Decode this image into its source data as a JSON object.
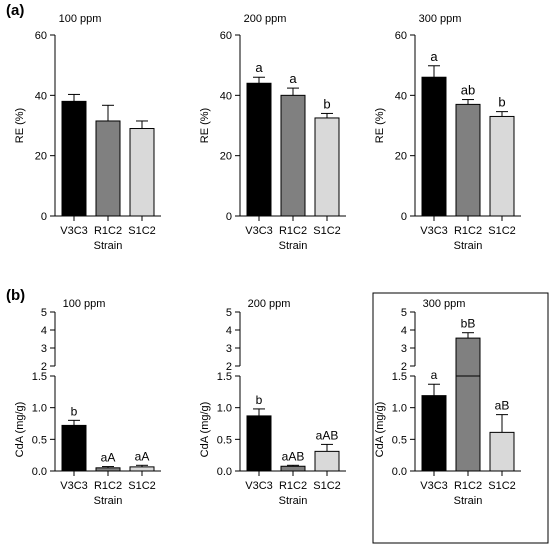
{
  "panels": [
    {
      "label": "(a)"
    },
    {
      "label": "(b)"
    }
  ],
  "colors": {
    "V3C3": "#000000",
    "R1C2": "#808080",
    "S1C2": "#d9d9d9",
    "axis": "#000000"
  },
  "chart_data": [
    {
      "type": "bar",
      "panel": "(a)",
      "title": "100 ppm",
      "categories": [
        "V3C3",
        "R1C2",
        "S1C2"
      ],
      "values": [
        38,
        31.5,
        29
      ],
      "errors": [
        2.3,
        5.2,
        2.5
      ],
      "letters": [
        "",
        "",
        ""
      ],
      "xlabel": "Strain",
      "ylabel": "RE (%)",
      "ylim": [
        0,
        60
      ],
      "yticks": [
        "0",
        "20",
        "40",
        "60"
      ]
    },
    {
      "type": "bar",
      "panel": "(a)",
      "title": "200 ppm",
      "categories": [
        "V3C3",
        "R1C2",
        "S1C2"
      ],
      "values": [
        44,
        40,
        32.5
      ],
      "errors": [
        2.0,
        2.4,
        1.5
      ],
      "letters": [
        "a",
        "a",
        "b"
      ],
      "xlabel": "Strain",
      "ylabel": "RE (%)",
      "ylim": [
        0,
        60
      ],
      "yticks": [
        "0",
        "20",
        "40",
        "60"
      ]
    },
    {
      "type": "bar",
      "panel": "(a)",
      "title": "300 ppm",
      "categories": [
        "V3C3",
        "R1C2",
        "S1C2"
      ],
      "values": [
        46,
        37,
        33
      ],
      "errors": [
        3.8,
        1.6,
        1.6
      ],
      "letters": [
        "a",
        "ab",
        "b"
      ],
      "xlabel": "Strain",
      "ylabel": "RE (%)",
      "ylim": [
        0,
        60
      ],
      "yticks": [
        "0",
        "20",
        "40",
        "60"
      ]
    },
    {
      "type": "bar",
      "panel": "(b)",
      "title": "100 ppm",
      "categories": [
        "V3C3",
        "R1C2",
        "S1C2"
      ],
      "values": [
        0.72,
        0.05,
        0.065
      ],
      "errors": [
        0.08,
        0.02,
        0.025
      ],
      "letters": [
        "b",
        "aA",
        "aA"
      ],
      "xlabel": "Strain",
      "ylabel": "CdA (mg/g)",
      "ylim": [
        0,
        5
      ],
      "axis_break": [
        1.5,
        2
      ],
      "yticks_lower": [
        "0.0",
        "0.5",
        "1.0",
        "1.5"
      ],
      "yticks_upper": [
        "2",
        "3",
        "4",
        "5"
      ]
    },
    {
      "type": "bar",
      "panel": "(b)",
      "title": "200 ppm",
      "categories": [
        "V3C3",
        "R1C2",
        "S1C2"
      ],
      "values": [
        0.87,
        0.075,
        0.31
      ],
      "errors": [
        0.11,
        0.015,
        0.11
      ],
      "letters": [
        "b",
        "aAB",
        "aAB"
      ],
      "xlabel": "Strain",
      "ylabel": "CdA (mg/g)",
      "ylim": [
        0,
        5
      ],
      "axis_break": [
        1.5,
        2
      ],
      "yticks_lower": [
        "0.0",
        "0.5",
        "1.0",
        "1.5"
      ],
      "yticks_upper": [
        "2",
        "3",
        "4",
        "5"
      ]
    },
    {
      "type": "bar",
      "panel": "(b)",
      "title": "300 ppm",
      "categories": [
        "V3C3",
        "R1C2",
        "S1C2"
      ],
      "values": [
        1.19,
        3.55,
        0.61
      ],
      "errors": [
        0.18,
        0.3,
        0.28
      ],
      "letters": [
        "a",
        "bB",
        "aB"
      ],
      "xlabel": "Strain",
      "ylabel": "CdA (mg/g)",
      "ylim": [
        0,
        5
      ],
      "axis_break": [
        1.5,
        2
      ],
      "yticks_lower": [
        "0.0",
        "0.5",
        "1.0",
        "1.5"
      ],
      "yticks_upper": [
        "2",
        "3",
        "4",
        "5"
      ],
      "boxed": true
    }
  ]
}
